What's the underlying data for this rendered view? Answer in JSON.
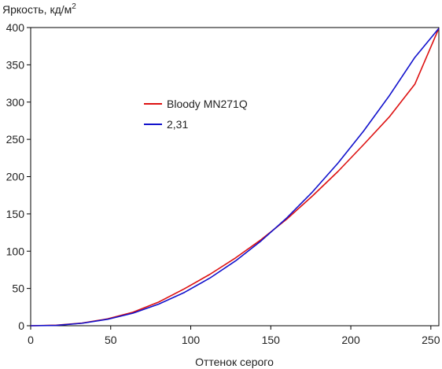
{
  "chart_data": {
    "type": "line",
    "title": "",
    "xlabel": "Оттенок серого",
    "ylabel_text": "Яркость, кд/м",
    "ylabel_superscript": "2",
    "xlim": [
      0,
      255
    ],
    "ylim": [
      0,
      400
    ],
    "x_ticks": [
      0,
      50,
      100,
      150,
      200,
      250
    ],
    "y_ticks": [
      0,
      50,
      100,
      150,
      200,
      250,
      300,
      350,
      400
    ],
    "grid": false,
    "legend_position": "upper-left-center",
    "series": [
      {
        "name": "Bloody MN271Q",
        "color": "#dd1111",
        "x": [
          0,
          16,
          32,
          48,
          64,
          80,
          96,
          112,
          128,
          144,
          160,
          176,
          192,
          208,
          224,
          240,
          255
        ],
        "y": [
          0,
          0.7,
          3.5,
          9.2,
          18.2,
          31.8,
          49.5,
          69.0,
          91.0,
          115.5,
          143.0,
          174.0,
          207.0,
          243.0,
          280.0,
          324.0,
          399.0
        ]
      },
      {
        "name": "2,31",
        "color": "#1111cc",
        "x": [
          0,
          16,
          32,
          48,
          64,
          80,
          96,
          112,
          128,
          144,
          160,
          176,
          192,
          208,
          224,
          240,
          255
        ],
        "y": [
          0,
          0.5,
          3.3,
          8.6,
          16.9,
          29.0,
          44.6,
          64.0,
          87.0,
          113.9,
          144.6,
          179.4,
          218.2,
          261.2,
          308.4,
          359.9,
          399.0
        ]
      }
    ]
  }
}
